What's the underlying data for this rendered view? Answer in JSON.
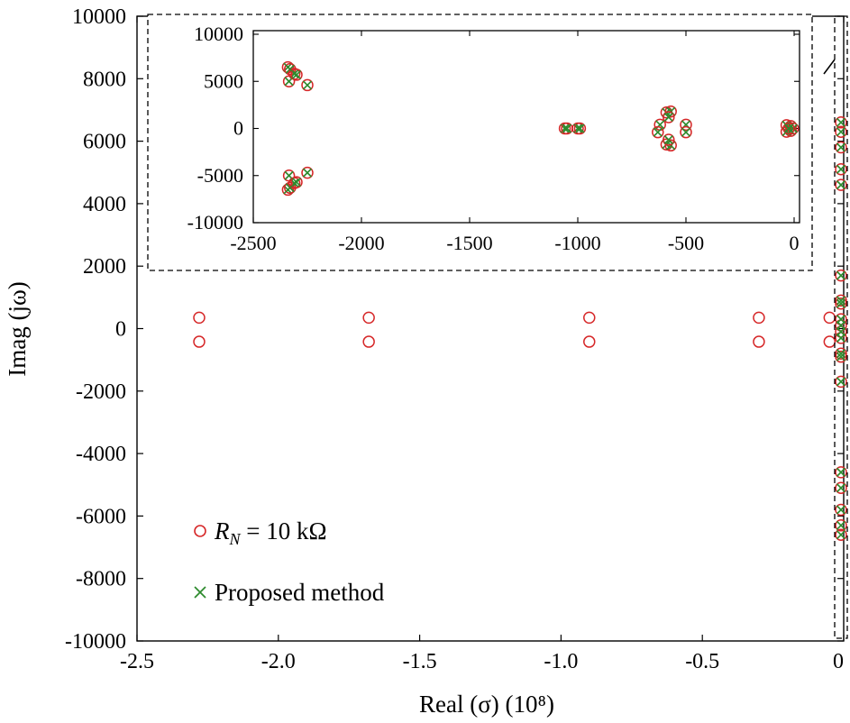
{
  "chart_data": [
    {
      "type": "scatter",
      "xlabel": "Real (σ) (10⁸)",
      "ylabel": "Imag (jω)",
      "xlim": [
        -2.5,
        0
      ],
      "ylim": [
        -10000,
        10000
      ],
      "xticks": [
        -2.5,
        -2.0,
        -1.5,
        -1.0,
        -0.5,
        0
      ],
      "xtick_labels": [
        "-2.5",
        "-2.0",
        "-1.5",
        "-1.0",
        "-0.5",
        "0"
      ],
      "yticks": [
        10000,
        8000,
        6000,
        4000,
        2000,
        0,
        -2000,
        -4000,
        -6000,
        -8000,
        -10000
      ],
      "ytick_labels": [
        "10000",
        "8000",
        "6000",
        "4000",
        "2000",
        "0",
        "-2000",
        "-4000",
        "-6000",
        "-8000",
        "-10000"
      ],
      "grid": false,
      "legend_placement": "bottom-left",
      "legend": [
        {
          "label_main": "R",
          "label_sub": "N",
          "label_rest": " = 10 kΩ",
          "marker": "circle",
          "color": "#d62728"
        },
        {
          "label": "Proposed method",
          "marker": "x",
          "color": "#2e8b2e"
        }
      ],
      "series": [
        {
          "name": "R_N = 10 kΩ",
          "marker": "circle",
          "color": "#d62728",
          "points": [
            [
              -2.28,
              350
            ],
            [
              -2.28,
              -420
            ],
            [
              -1.68,
              350
            ],
            [
              -1.68,
              -420
            ],
            [
              -0.9,
              350
            ],
            [
              -0.9,
              -420
            ],
            [
              -0.3,
              350
            ],
            [
              -0.3,
              -420
            ],
            [
              -0.05,
              350
            ],
            [
              -0.05,
              -420
            ],
            [
              0,
              6600
            ],
            [
              0,
              6300
            ],
            [
              0,
              5800
            ],
            [
              0,
              5100
            ],
            [
              0,
              4600
            ],
            [
              0,
              1700
            ],
            [
              0,
              900
            ],
            [
              0,
              800
            ],
            [
              0,
              300
            ],
            [
              0,
              100
            ],
            [
              0,
              -100
            ],
            [
              0,
              -300
            ],
            [
              0,
              -800
            ],
            [
              0,
              -900
            ],
            [
              0,
              -1700
            ],
            [
              0,
              -4600
            ],
            [
              0,
              -5100
            ],
            [
              0,
              -5800
            ],
            [
              0,
              -6300
            ],
            [
              0,
              -6600
            ]
          ]
        },
        {
          "name": "Proposed method",
          "marker": "x",
          "color": "#2e8b2e",
          "points": [
            [
              0,
              6600
            ],
            [
              0,
              6300
            ],
            [
              0,
              5800
            ],
            [
              0,
              5100
            ],
            [
              0,
              4600
            ],
            [
              0,
              1700
            ],
            [
              0,
              900
            ],
            [
              0,
              800
            ],
            [
              0,
              300
            ],
            [
              0,
              100
            ],
            [
              0,
              -100
            ],
            [
              0,
              -300
            ],
            [
              0,
              -800
            ],
            [
              0,
              -900
            ],
            [
              0,
              -1700
            ],
            [
              0,
              -4600
            ],
            [
              0,
              -5100
            ],
            [
              0,
              -5800
            ],
            [
              0,
              -6300
            ],
            [
              0,
              -6600
            ]
          ]
        }
      ]
    },
    {
      "type": "scatter",
      "role": "inset",
      "xlim": [
        -2500,
        0
      ],
      "ylim": [
        -10000,
        10000
      ],
      "xticks": [
        -2500,
        -2000,
        -1500,
        -1000,
        -500,
        0
      ],
      "xtick_labels": [
        "-2500",
        "-2000",
        "-1500",
        "-1000",
        "-500",
        "0"
      ],
      "yticks": [
        10000,
        5000,
        0,
        -5000,
        -10000
      ],
      "ytick_labels": [
        "10000",
        "5000",
        "0",
        "-5000",
        "-10000"
      ],
      "points": [
        [
          -2340,
          6500
        ],
        [
          -2330,
          6300
        ],
        [
          -2335,
          5000
        ],
        [
          -2310,
          5800
        ],
        [
          -2300,
          5700
        ],
        [
          -2250,
          4600
        ],
        [
          -2340,
          -6500
        ],
        [
          -2330,
          -6300
        ],
        [
          -2335,
          -5000
        ],
        [
          -2310,
          -5800
        ],
        [
          -2300,
          -5700
        ],
        [
          -2250,
          -4700
        ],
        [
          -1060,
          0
        ],
        [
          -1050,
          0
        ],
        [
          -1000,
          0
        ],
        [
          -990,
          0
        ],
        [
          -590,
          1700
        ],
        [
          -570,
          1800
        ],
        [
          -580,
          1200
        ],
        [
          -620,
          400
        ],
        [
          -630,
          -400
        ],
        [
          -500,
          400
        ],
        [
          -500,
          -400
        ],
        [
          -590,
          -1700
        ],
        [
          -570,
          -1800
        ],
        [
          -580,
          -1200
        ],
        [
          -35,
          350
        ],
        [
          -35,
          -350
        ],
        [
          -15,
          250
        ],
        [
          -15,
          -250
        ],
        [
          -5,
          0
        ],
        [
          -25,
          0
        ]
      ]
    }
  ]
}
